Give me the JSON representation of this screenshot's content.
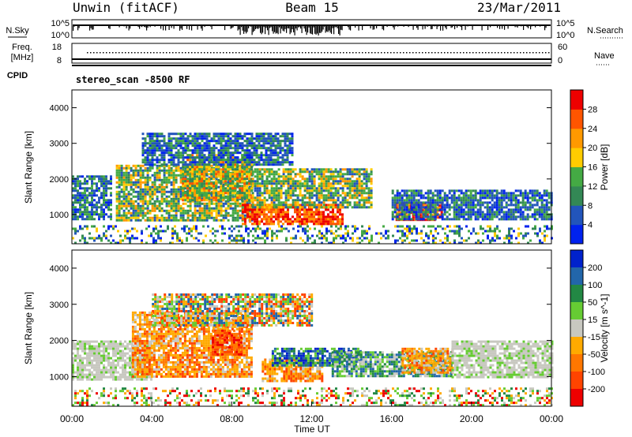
{
  "header": {
    "station": "Unwin (fitACF)",
    "beam": "Beam 15",
    "date": "23/Mar/2011"
  },
  "status_panels": {
    "nsky_label": "N.Sky",
    "nsearch_label": "N.Search",
    "freq_label": "Freq.",
    "freq_unit": "[MHz]",
    "nave_label": "Nave",
    "cpid_label": "CPID",
    "cpid_value": "stereo_scan -8500 RF",
    "noise_ticks": [
      "10^5",
      "10^0"
    ],
    "freq_ticks": [
      "18",
      "8"
    ],
    "nave_ticks": [
      "60",
      "0"
    ]
  },
  "chart_data": [
    {
      "type": "heatmap",
      "name": "power-panel",
      "ylabel": "Slant Range [km]",
      "xlabel": "",
      "xlim": [
        "00:00",
        "24:00"
      ],
      "ylim": [
        180,
        4500
      ],
      "yticks": [
        1000,
        2000,
        3000,
        4000
      ],
      "colorbar": {
        "label": "Power [dB]",
        "ticks": [
          "4",
          "8",
          "12",
          "16",
          "20",
          "24",
          "28"
        ],
        "colors": [
          "#0022ee",
          "#2255bb",
          "#338855",
          "#44aa44",
          "#ffcc00",
          "#ff9900",
          "#ff5500",
          "#ee0000"
        ]
      },
      "regions": [
        {
          "t0": 0.0,
          "t1": 24.0,
          "r0": 180,
          "r1": 700,
          "level": "speckle"
        },
        {
          "t0": 0.0,
          "t1": 2.0,
          "r0": 850,
          "r1": 2100,
          "level": "low"
        },
        {
          "t0": 2.2,
          "t1": 9.0,
          "r0": 850,
          "r1": 2400,
          "level": "mid"
        },
        {
          "t0": 5.5,
          "t1": 9.0,
          "r0": 1400,
          "r1": 2700,
          "level": "high"
        },
        {
          "t0": 8.5,
          "t1": 13.5,
          "r0": 750,
          "r1": 1300,
          "level": "max"
        },
        {
          "t0": 9.0,
          "t1": 15.0,
          "r0": 1200,
          "r1": 2300,
          "level": "mid"
        },
        {
          "t0": 16.2,
          "t1": 18.5,
          "r0": 850,
          "r1": 1350,
          "level": "max"
        },
        {
          "t0": 16.0,
          "t1": 24.0,
          "r0": 900,
          "r1": 1700,
          "level": "low"
        },
        {
          "t0": 3.5,
          "t1": 11.0,
          "r0": 2400,
          "r1": 3300,
          "level": "low"
        }
      ]
    },
    {
      "type": "heatmap",
      "name": "velocity-panel",
      "ylabel": "Slant Range [km]",
      "xlabel": "Time UT",
      "xlim": [
        "00:00",
        "24:00"
      ],
      "xticks": [
        "00:00",
        "04:00",
        "08:00",
        "12:00",
        "16:00",
        "20:00",
        "00:00"
      ],
      "ylim": [
        180,
        4500
      ],
      "yticks": [
        1000,
        2000,
        3000,
        4000
      ],
      "colorbar": {
        "label": "Velocity [m s^-1]",
        "ticks": [
          "200",
          "100",
          "50",
          "15",
          "-15",
          "-50",
          "-100",
          "-200"
        ],
        "colors": [
          "#0022cc",
          "#2266aa",
          "#228844",
          "#66cc33",
          "#c8c8c0",
          "#ffaa00",
          "#ff7700",
          "#ff4400",
          "#ee0000"
        ]
      },
      "regions": [
        {
          "t0": 0.0,
          "t1": 24.0,
          "r0": 180,
          "r1": 700,
          "level": "speckle"
        },
        {
          "t0": 0.0,
          "t1": 4.0,
          "r0": 900,
          "r1": 2000,
          "level": "ground"
        },
        {
          "t0": 3.0,
          "t1": 9.0,
          "r0": 1000,
          "r1": 2800,
          "level": "away"
        },
        {
          "t0": 7.0,
          "t1": 8.5,
          "r0": 1600,
          "r1": 2300,
          "level": "fast-away"
        },
        {
          "t0": 9.5,
          "t1": 12.5,
          "r0": 850,
          "r1": 1500,
          "level": "away"
        },
        {
          "t0": 10.0,
          "t1": 14.5,
          "r0": 1300,
          "r1": 1800,
          "level": "toward"
        },
        {
          "t0": 13.0,
          "t1": 19.0,
          "r0": 1000,
          "r1": 1700,
          "level": "slow-toward"
        },
        {
          "t0": 16.5,
          "t1": 19.0,
          "r0": 1100,
          "r1": 1800,
          "level": "away"
        },
        {
          "t0": 19.0,
          "t1": 24.0,
          "r0": 1000,
          "r1": 2000,
          "level": "ground"
        },
        {
          "t0": 4.0,
          "t1": 12.0,
          "r0": 2400,
          "r1": 3300,
          "level": "mixed"
        }
      ]
    }
  ]
}
